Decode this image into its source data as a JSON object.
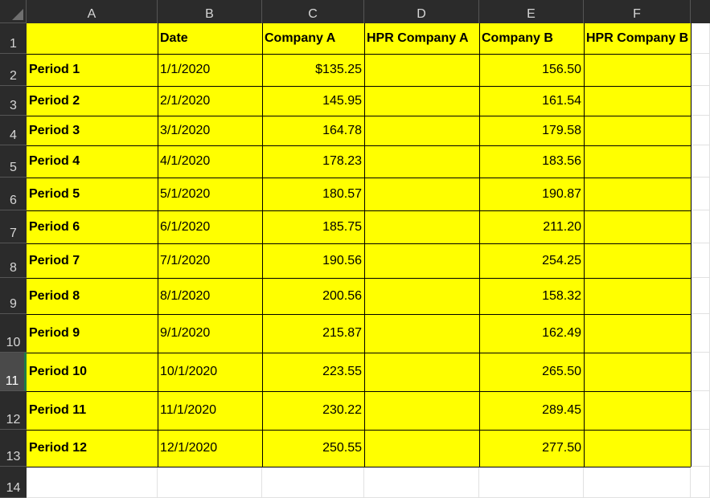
{
  "columns": [
    "A",
    "B",
    "C",
    "D",
    "E",
    "F"
  ],
  "rows": [
    {
      "num": "1",
      "cells": [
        "",
        "Date",
        "Company A",
        "HPR Company A",
        "Company B",
        "HPR Company B"
      ]
    },
    {
      "num": "2",
      "cells": [
        "Period 1",
        "1/1/2020",
        "$135.25",
        "",
        "156.50",
        ""
      ]
    },
    {
      "num": "3",
      "cells": [
        "Period 2",
        "2/1/2020",
        "145.95",
        "",
        "161.54",
        ""
      ]
    },
    {
      "num": "4",
      "cells": [
        "Period 3",
        "3/1/2020",
        "164.78",
        "",
        "179.58",
        ""
      ]
    },
    {
      "num": "5",
      "cells": [
        "Period 4",
        "4/1/2020",
        "178.23",
        "",
        "183.56",
        ""
      ]
    },
    {
      "num": "6",
      "cells": [
        "Period 5",
        "5/1/2020",
        "180.57",
        "",
        "190.87",
        ""
      ]
    },
    {
      "num": "7",
      "cells": [
        "Period 6",
        "6/1/2020",
        "185.75",
        "",
        "211.20",
        ""
      ]
    },
    {
      "num": "8",
      "cells": [
        "Period 7",
        "7/1/2020",
        "190.56",
        "",
        "254.25",
        ""
      ]
    },
    {
      "num": "9",
      "cells": [
        "Period 8",
        "8/1/2020",
        "200.56",
        "",
        "158.32",
        ""
      ]
    },
    {
      "num": "10",
      "cells": [
        "Period 9",
        "9/1/2020",
        "215.87",
        "",
        "162.49",
        ""
      ]
    },
    {
      "num": "11",
      "cells": [
        "Period 10",
        "10/1/2020",
        "223.55",
        "",
        "265.50",
        ""
      ]
    },
    {
      "num": "12",
      "cells": [
        "Period 11",
        "11/1/2020",
        "230.22",
        "",
        "289.45",
        ""
      ]
    },
    {
      "num": "13",
      "cells": [
        "Period 12",
        "12/1/2020",
        "250.55",
        "",
        "277.50",
        ""
      ]
    },
    {
      "num": "14",
      "cells": [
        "",
        "",
        "",
        "",
        "",
        ""
      ]
    }
  ],
  "selected_row": "11",
  "colors": {
    "header_bg": "#2b2b2b",
    "header_text": "#d6d6d6",
    "fill": "#ffff00",
    "border": "#000000",
    "selected_accent": "#1f7a47"
  }
}
